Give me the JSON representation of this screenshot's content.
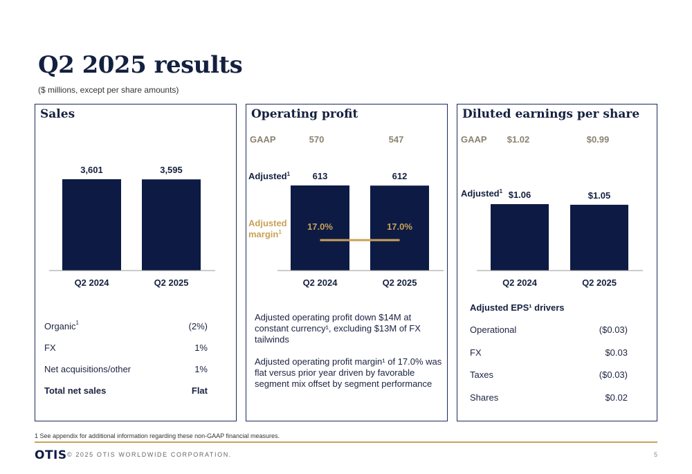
{
  "title": "Q2 2025 results",
  "subtitle": "($ millions, except per share amounts)",
  "colors": {
    "bar": "#0d1b44",
    "accent_gold": "#c9a256",
    "gaap_gray": "#8c8270"
  },
  "sales": {
    "title": "Sales",
    "table": [
      {
        "label": "Organic",
        "sup": "1",
        "value": "(2%)"
      },
      {
        "label": "FX",
        "sup": "",
        "value": "1%"
      },
      {
        "label": "Net acquisitions/other",
        "sup": "",
        "value": "1%"
      },
      {
        "label": "Total net sales",
        "sup": "",
        "value": "Flat"
      }
    ]
  },
  "operating_profit": {
    "title": "Operating profit",
    "gaap_label": "GAAP",
    "adjusted_label": "Adjusted",
    "adjusted_sup": "1",
    "margin_label_line1": "Adjusted",
    "margin_label_line2": "margin",
    "margin_sup": "1",
    "text1": "Adjusted operating profit down $14M at constant currency¹, excluding $13M of FX tailwinds",
    "text2": "Adjusted operating profit margin¹ of 17.0% was flat versus prior year driven by favorable segment mix offset by segment performance"
  },
  "eps": {
    "title": "Diluted earnings per share",
    "gaap_label": "GAAP",
    "adjusted_label": "Adjusted",
    "adjusted_sup": "1",
    "drivers_title": "Adjusted EPS¹ drivers",
    "drivers": [
      {
        "label": "Operational",
        "value": "($0.03)"
      },
      {
        "label": "FX",
        "value": "$0.03"
      },
      {
        "label": "Taxes",
        "value": "($0.03)"
      },
      {
        "label": "Shares",
        "value": "$0.02"
      }
    ]
  },
  "chart_data": [
    {
      "type": "bar",
      "title": "Sales",
      "categories": [
        "Q2 2024",
        "Q2 2025"
      ],
      "values": [
        3601,
        3595
      ],
      "labels": [
        "3,601",
        "3,595"
      ]
    },
    {
      "type": "bar",
      "title": "Operating profit",
      "categories": [
        "Q2 2024",
        "Q2 2025"
      ],
      "values": [
        613,
        612
      ],
      "labels": [
        "613",
        "612"
      ],
      "gaap_values": [
        570,
        547
      ],
      "gaap_labels": [
        "570",
        "547"
      ],
      "adjusted_margin": [
        17.0,
        17.0
      ],
      "adjusted_margin_labels": [
        "17.0%",
        "17.0%"
      ]
    },
    {
      "type": "bar",
      "title": "Diluted earnings per share",
      "categories": [
        "Q2 2024",
        "Q2 2025"
      ],
      "values": [
        1.06,
        1.05
      ],
      "labels": [
        "$1.06",
        "$1.05"
      ],
      "gaap_values": [
        1.02,
        0.99
      ],
      "gaap_labels": [
        "$1.02",
        "$0.99"
      ]
    }
  ],
  "footer": {
    "footnote": "1 See appendix for additional information regarding these non-GAAP financial measures.",
    "logo": "OTIS",
    "copyright": "© 2025 OTIS WORLDWIDE CORPORATION.",
    "page": "5"
  }
}
